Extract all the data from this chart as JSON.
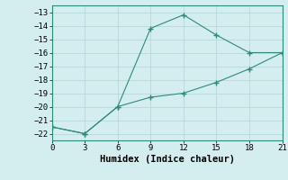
{
  "xlabel": "Humidex (Indice chaleur)",
  "line1_x": [
    0,
    3,
    6,
    9,
    12,
    15,
    18,
    21
  ],
  "line1_y": [
    -21.5,
    -22,
    -20,
    -14.2,
    -13.2,
    -14.7,
    -16.0,
    -16.0
  ],
  "line2_x": [
    0,
    3,
    6,
    9,
    12,
    15,
    18,
    21
  ],
  "line2_y": [
    -21.5,
    -22,
    -20,
    -19.3,
    -19.0,
    -18.2,
    -17.2,
    -16.0
  ],
  "line_color": "#2d8b78",
  "bg_color": "#d4edee",
  "grid_color": "#b8d8da",
  "xlim": [
    0,
    21
  ],
  "ylim": [
    -22.5,
    -12.5
  ],
  "xticks": [
    0,
    3,
    6,
    9,
    12,
    15,
    18,
    21
  ],
  "yticks": [
    -13,
    -14,
    -15,
    -16,
    -17,
    -18,
    -19,
    -20,
    -21,
    -22
  ],
  "tick_fontsize": 6.5,
  "xlabel_fontsize": 7.5,
  "marker": "+",
  "marker_size": 4,
  "linewidth": 0.8
}
